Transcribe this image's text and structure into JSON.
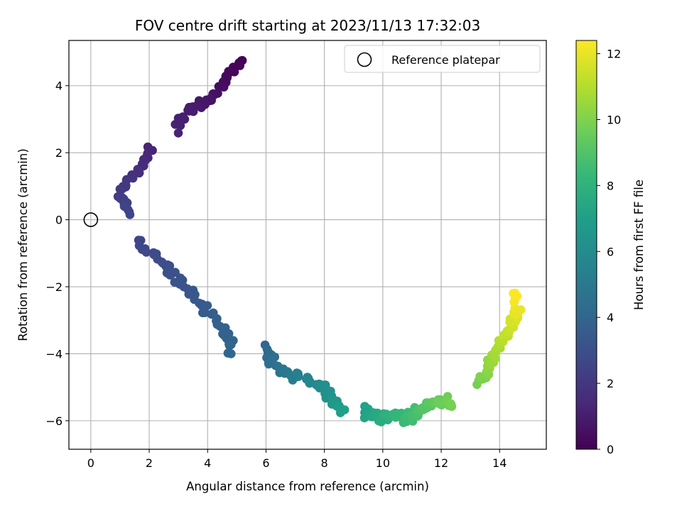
{
  "chart_data": {
    "type": "scatter",
    "title": "FOV centre drift starting at 2023/11/13 17:32:03",
    "xlabel": "Angular distance from reference (arcmin)",
    "ylabel": "Rotation from reference (arcmin)",
    "xlim": [
      -0.75,
      15.6
    ],
    "ylim": [
      -6.85,
      5.35
    ],
    "xticks": [
      0,
      2,
      4,
      6,
      8,
      10,
      12,
      14
    ],
    "yticks": [
      -6,
      -4,
      -2,
      0,
      2,
      4
    ],
    "grid": true,
    "legend": {
      "placement": "top-right",
      "entries": [
        "Reference platepar"
      ]
    },
    "reference_point": {
      "x": 0,
      "y": 0
    },
    "colorbar": {
      "label": "Hours from first FF file",
      "colormap": "viridis",
      "range": [
        0,
        12.4
      ],
      "ticks": [
        0,
        2,
        4,
        6,
        8,
        10,
        12
      ]
    },
    "color_scale": [
      "#440154",
      "#482878",
      "#3e4989",
      "#31688e",
      "#26828e",
      "#1f9e89",
      "#35b779",
      "#6ece58",
      "#b5de2b",
      "#fde725"
    ],
    "segments": [
      {
        "t_start": 0.0,
        "t_end": 1.2,
        "count": 42,
        "jitter": 0.12,
        "path": [
          [
            5.2,
            4.75
          ],
          [
            4.9,
            4.5
          ],
          [
            4.6,
            4.25
          ],
          [
            4.5,
            4.0
          ],
          [
            4.1,
            3.6
          ],
          [
            3.5,
            3.35
          ],
          [
            3.1,
            3.0
          ],
          [
            3.0,
            2.75
          ]
        ]
      },
      {
        "t_start": 1.2,
        "t_end": 2.6,
        "count": 40,
        "jitter": 0.11,
        "path": [
          [
            2.05,
            2.05
          ],
          [
            1.8,
            1.7
          ],
          [
            1.5,
            1.35
          ],
          [
            1.2,
            1.05
          ],
          [
            1.0,
            0.8
          ],
          [
            1.1,
            0.5
          ],
          [
            1.3,
            0.2
          ]
        ]
      },
      {
        "t_start": 2.6,
        "t_end": 4.1,
        "count": 55,
        "jitter": 0.12,
        "path": [
          [
            1.6,
            -0.6
          ],
          [
            2.0,
            -0.95
          ],
          [
            2.5,
            -1.35
          ],
          [
            3.0,
            -1.8
          ],
          [
            3.5,
            -2.25
          ],
          [
            4.0,
            -2.7
          ],
          [
            4.3,
            -3.1
          ],
          [
            4.8,
            -3.5
          ],
          [
            4.85,
            -4.0
          ]
        ]
      },
      {
        "t_start": 4.1,
        "t_end": 7.0,
        "count": 60,
        "jitter": 0.12,
        "path": [
          [
            6.0,
            -3.85
          ],
          [
            6.3,
            -4.35
          ],
          [
            6.8,
            -4.6
          ],
          [
            7.5,
            -4.8
          ],
          [
            8.0,
            -5.05
          ],
          [
            8.3,
            -5.4
          ],
          [
            8.7,
            -5.8
          ]
        ]
      },
      {
        "t_start": 7.0,
        "t_end": 9.8,
        "count": 85,
        "jitter": 0.15,
        "path": [
          [
            9.3,
            -5.7
          ],
          [
            9.8,
            -5.9
          ],
          [
            10.3,
            -5.85
          ],
          [
            10.9,
            -5.9
          ],
          [
            11.3,
            -5.7
          ],
          [
            11.8,
            -5.45
          ],
          [
            12.3,
            -5.5
          ]
        ]
      },
      {
        "t_start": 9.8,
        "t_end": 12.4,
        "count": 58,
        "jitter": 0.13,
        "path": [
          [
            13.3,
            -4.85
          ],
          [
            13.6,
            -4.4
          ],
          [
            13.9,
            -4.0
          ],
          [
            14.1,
            -3.5
          ],
          [
            14.3,
            -3.3
          ],
          [
            14.5,
            -3.0
          ],
          [
            14.6,
            -2.6
          ],
          [
            14.55,
            -2.15
          ]
        ]
      }
    ]
  }
}
